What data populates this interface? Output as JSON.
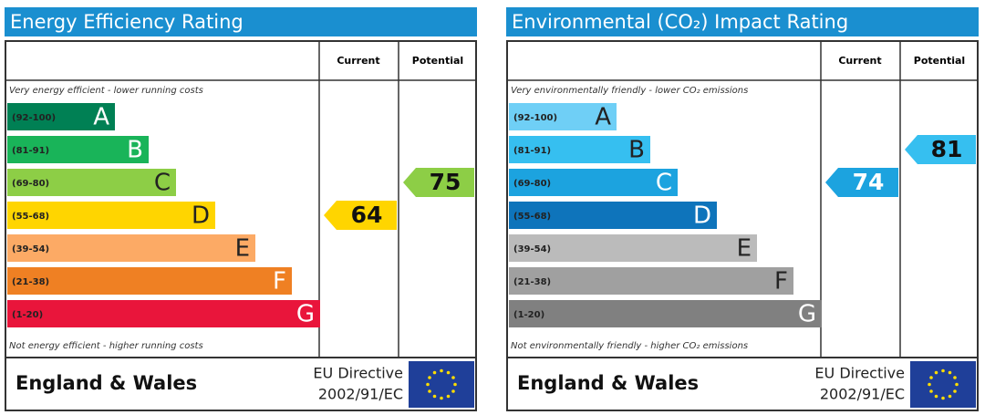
{
  "chart_data": [
    {
      "type": "epc",
      "title": "Energy Efficiency Rating",
      "columns": [
        "Current",
        "Potential"
      ],
      "top_note": "Very energy efficient - lower running costs",
      "bottom_note": "Not energy efficient - higher running costs",
      "bands": [
        {
          "range": "(92-100)",
          "letter": "A",
          "color": "#008054"
        },
        {
          "range": "(81-91)",
          "letter": "B",
          "color": "#19b459"
        },
        {
          "range": "(69-80)",
          "letter": "C",
          "color": "#8dce46"
        },
        {
          "range": "(55-68)",
          "letter": "D",
          "color": "#ffd500"
        },
        {
          "range": "(39-54)",
          "letter": "E",
          "color": "#fcaa65"
        },
        {
          "range": "(21-38)",
          "letter": "F",
          "color": "#ef8023"
        },
        {
          "range": "(1-20)",
          "letter": "G",
          "color": "#e9153b"
        }
      ],
      "current": 64,
      "current_color": "#ffd500",
      "potential": 75,
      "potential_color": "#8dce46",
      "footer": "England & Wales",
      "directive": [
        "EU Directive",
        "2002/91/EC"
      ]
    },
    {
      "type": "epc",
      "title": "Environmental (CO₂) Impact Rating",
      "columns": [
        "Current",
        "Potential"
      ],
      "top_note": "Very environmentally friendly - lower CO₂ emissions",
      "bottom_note": "Not environmentally friendly - higher CO₂ emissions",
      "bands": [
        {
          "range": "(92-100)",
          "letter": "A",
          "color": "#6fcff6"
        },
        {
          "range": "(81-91)",
          "letter": "B",
          "color": "#36bff0"
        },
        {
          "range": "(69-80)",
          "letter": "C",
          "color": "#1ca3df"
        },
        {
          "range": "(55-68)",
          "letter": "D",
          "color": "#0e74bb"
        },
        {
          "range": "(39-54)",
          "letter": "E",
          "color": "#bbbbbb"
        },
        {
          "range": "(21-38)",
          "letter": "F",
          "color": "#a0a0a0"
        },
        {
          "range": "(1-20)",
          "letter": "G",
          "color": "#808080"
        }
      ],
      "current": 74,
      "current_color": "#1ca3df",
      "potential": 81,
      "potential_color": "#36bff0",
      "footer": "England & Wales",
      "directive": [
        "EU Directive",
        "2002/91/EC"
      ]
    }
  ]
}
